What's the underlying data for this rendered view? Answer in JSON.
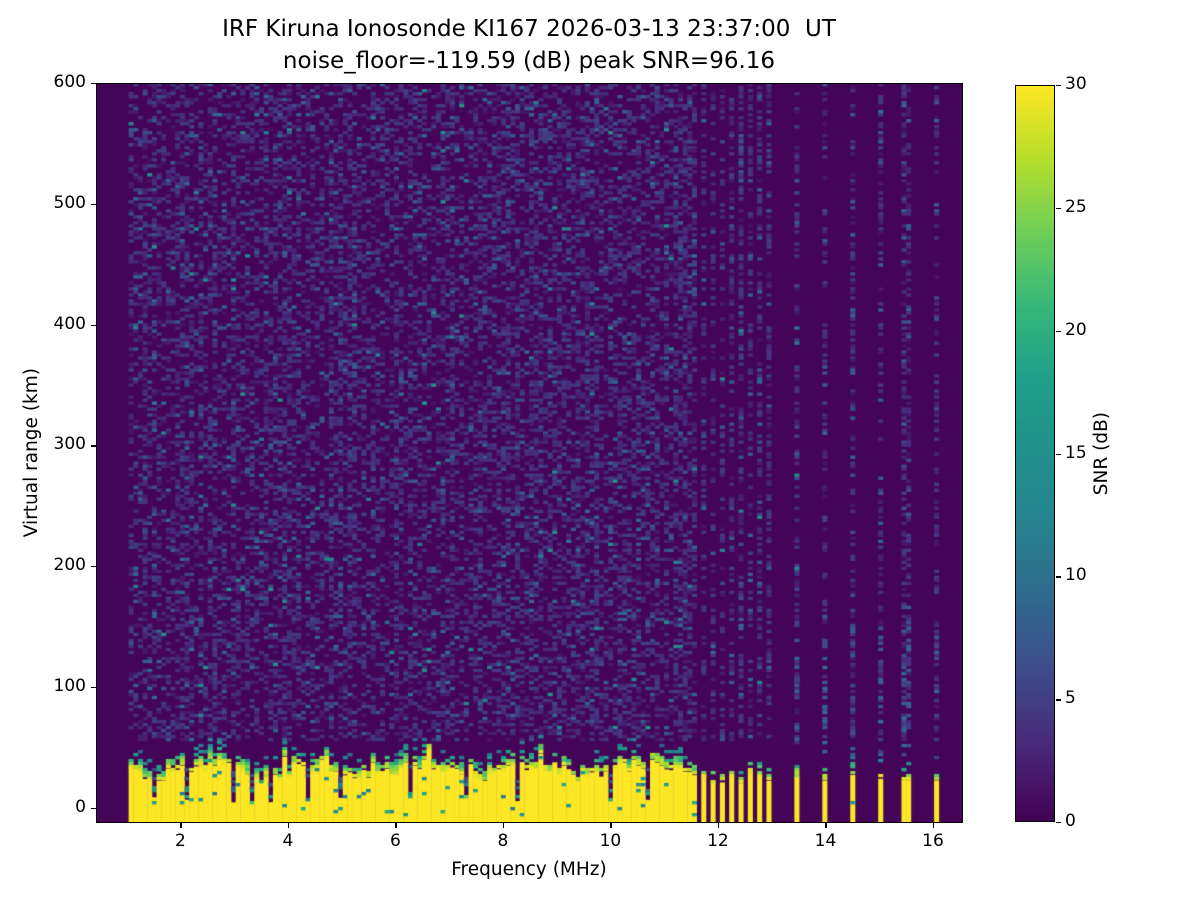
{
  "figure": {
    "title_line1": "IRF Kiruna Ionosonde KI167 2026-03-13 23:37:00  UT",
    "title_line2": "noise_floor=-119.59 (dB) peak SNR=96.16",
    "background_color": "#ffffff"
  },
  "chart_data": {
    "type": "heatmap",
    "title": "IRF Kiruna Ionosonde KI167 2026-03-13 23:37:00  UT",
    "subtitle": "noise_floor=-119.59 (dB) peak SNR=96.16",
    "xlabel": "Frequency (MHz)",
    "ylabel": "Virtual range (km)",
    "colorbar_label": "SNR (dB)",
    "noise_floor_db": -119.59,
    "peak_snr_db": 96.16,
    "xlim": [
      0.43,
      16.54
    ],
    "ylim": [
      -12,
      600
    ],
    "clim": [
      0,
      30
    ],
    "xticks": [
      2,
      4,
      6,
      8,
      10,
      12,
      14,
      16
    ],
    "yticks": [
      0,
      100,
      200,
      300,
      400,
      500,
      600
    ],
    "cticks": [
      0,
      5,
      10,
      15,
      20,
      25,
      30
    ],
    "grid": false,
    "legend": "colorbar-right",
    "colormap": "viridis",
    "colormap_stops": [
      [
        0.0,
        "#440154"
      ],
      [
        0.1,
        "#482878"
      ],
      [
        0.2,
        "#3e4a89"
      ],
      [
        0.3,
        "#31688e"
      ],
      [
        0.4,
        "#26828e"
      ],
      [
        0.5,
        "#21918c"
      ],
      [
        0.6,
        "#1f9e89"
      ],
      [
        0.7,
        "#35b779"
      ],
      [
        0.8,
        "#6ece58"
      ],
      [
        0.9,
        "#b5de2b"
      ],
      [
        1.0,
        "#fde725"
      ]
    ],
    "features": {
      "data_freq_start_mhz": 1.0,
      "continuous_clutter_band_end_mhz": 11.62,
      "ground_clutter_snr_db": 30,
      "ground_clutter_top_km_range": [
        24,
        38
      ],
      "clutter_notch_freqs_mhz": [
        1.5,
        2.1,
        3.0,
        3.35,
        3.65,
        4.35,
        5.0,
        6.3,
        7.3,
        8.3,
        10.0,
        10.7
      ],
      "dense_stripe_freqs_mhz": [
        11.7,
        11.9,
        12.08,
        12.25,
        12.43,
        12.6,
        12.78,
        12.97
      ],
      "sparse_stripe_freqs_mhz": [
        13.5,
        14.0,
        14.5,
        15.0,
        15.5,
        16.05
      ],
      "background_noise_db_range": [
        0,
        12
      ],
      "noise_seed": 42
    }
  }
}
